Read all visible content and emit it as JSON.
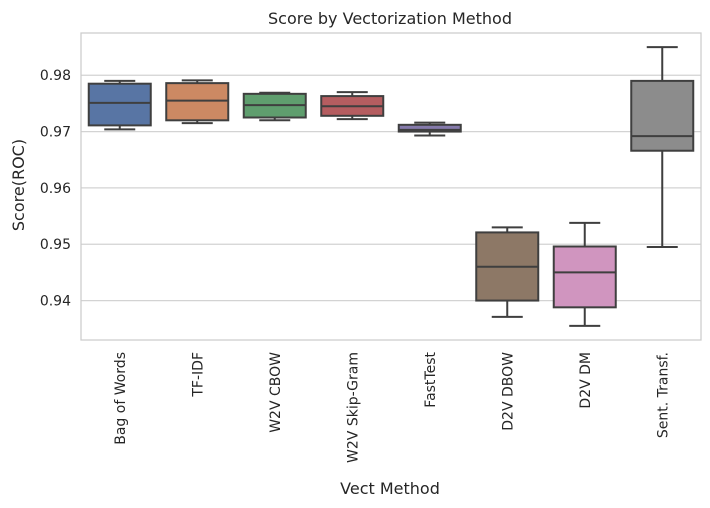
{
  "chart_data": {
    "type": "box",
    "title": "Score by Vectorization Method",
    "xlabel": "Vect Method",
    "ylabel": "Score(ROC)",
    "ylim": [
      0.933,
      0.9875
    ],
    "yticks": [
      0.94,
      0.95,
      0.96,
      0.97,
      0.98
    ],
    "ytick_labels": [
      "0.94",
      "0.95",
      "0.96",
      "0.97",
      "0.98"
    ],
    "grid": "horizontal",
    "categories": [
      "Bag of Words",
      "TF-IDF",
      "W2V CBOW",
      "W2V Skip-Gram",
      "FastTest",
      "D2V DBOW",
      "D2V DM",
      "Sent. Transf."
    ],
    "series": [
      {
        "name": "Bag of Words",
        "color": "#5875a4",
        "whisker_low": 0.9704,
        "q1": 0.9711,
        "median": 0.9751,
        "q3": 0.9785,
        "whisker_high": 0.979
      },
      {
        "name": "TF-IDF",
        "color": "#cc8963",
        "whisker_low": 0.9715,
        "q1": 0.972,
        "median": 0.9755,
        "q3": 0.9786,
        "whisker_high": 0.9791
      },
      {
        "name": "W2V CBOW",
        "color": "#5f9e6e",
        "whisker_low": 0.972,
        "q1": 0.9725,
        "median": 0.9747,
        "q3": 0.9767,
        "whisker_high": 0.9769
      },
      {
        "name": "W2V Skip-Gram",
        "color": "#b55d60",
        "whisker_low": 0.9722,
        "q1": 0.9728,
        "median": 0.9745,
        "q3": 0.9763,
        "whisker_high": 0.977
      },
      {
        "name": "FastTest",
        "color": "#857aab",
        "whisker_low": 0.9693,
        "q1": 0.97,
        "median": 0.9703,
        "q3": 0.9712,
        "whisker_high": 0.9716
      },
      {
        "name": "D2V DBOW",
        "color": "#8d7866",
        "whisker_low": 0.9371,
        "q1": 0.94,
        "median": 0.946,
        "q3": 0.9521,
        "whisker_high": 0.953
      },
      {
        "name": "D2V DM",
        "color": "#d095bf",
        "whisker_low": 0.9355,
        "q1": 0.9388,
        "median": 0.945,
        "q3": 0.9496,
        "whisker_high": 0.9538
      },
      {
        "name": "Sent. Transf.",
        "color": "#8c8c8c",
        "whisker_low": 0.9495,
        "q1": 0.9666,
        "median": 0.9692,
        "q3": 0.979,
        "whisker_high": 0.985
      }
    ]
  }
}
